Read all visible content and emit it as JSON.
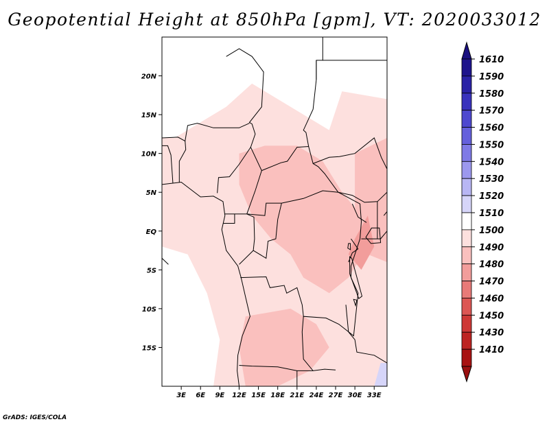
{
  "title": "Geopotential Height at 850hPa [gpm], VT: 2020033012",
  "credit": "GrADS: IGES/COLA",
  "map": {
    "lon_range": [
      0,
      35
    ],
    "lat_range": [
      -20,
      25
    ],
    "lon_ticks": [
      {
        "value": 3,
        "label": "3E"
      },
      {
        "value": 6,
        "label": "6E"
      },
      {
        "value": 9,
        "label": "9E"
      },
      {
        "value": 12,
        "label": "12E"
      },
      {
        "value": 15,
        "label": "15E"
      },
      {
        "value": 18,
        "label": "18E"
      },
      {
        "value": 21,
        "label": "21E"
      },
      {
        "value": 24,
        "label": "24E"
      },
      {
        "value": 27,
        "label": "27E"
      },
      {
        "value": 30,
        "label": "30E"
      },
      {
        "value": 33,
        "label": "33E"
      }
    ],
    "lat_ticks": [
      {
        "value": 20,
        "label": "20N"
      },
      {
        "value": 15,
        "label": "15N"
      },
      {
        "value": 10,
        "label": "10N"
      },
      {
        "value": 5,
        "label": "5N"
      },
      {
        "value": 0,
        "label": "EQ"
      },
      {
        "value": -5,
        "label": "5S"
      },
      {
        "value": -10,
        "label": "10S"
      },
      {
        "value": -15,
        "label": "15S"
      }
    ],
    "field_regions": [
      {
        "level": 1510,
        "name": "sahel-north",
        "pts": [
          [
            0,
            25
          ],
          [
            35,
            25
          ],
          [
            35,
            17
          ],
          [
            28,
            18
          ],
          [
            26,
            13
          ],
          [
            22,
            15
          ],
          [
            18,
            17
          ],
          [
            14,
            19
          ],
          [
            10,
            16
          ],
          [
            6,
            14
          ],
          [
            2,
            12
          ],
          [
            0,
            12
          ]
        ]
      },
      {
        "level": 1500,
        "name": "central-band",
        "pts": [
          [
            0,
            12
          ],
          [
            2,
            12
          ],
          [
            6,
            14
          ],
          [
            10,
            16
          ],
          [
            14,
            19
          ],
          [
            18,
            17
          ],
          [
            22,
            15
          ],
          [
            26,
            13
          ],
          [
            28,
            18
          ],
          [
            35,
            17
          ],
          [
            35,
            -16
          ],
          [
            31,
            -14
          ],
          [
            28,
            -20
          ],
          [
            0,
            -20
          ]
        ]
      },
      {
        "level": 1510,
        "name": "west-coast-light",
        "pts": [
          [
            0,
            -2
          ],
          [
            4,
            -3
          ],
          [
            7,
            -8
          ],
          [
            9,
            -14
          ],
          [
            8,
            -20
          ],
          [
            0,
            -20
          ]
        ]
      },
      {
        "level": 1490,
        "name": "congo-basin",
        "pts": [
          [
            12,
            10
          ],
          [
            16,
            11
          ],
          [
            21,
            11
          ],
          [
            25,
            9
          ],
          [
            28,
            5
          ],
          [
            31,
            2
          ],
          [
            32,
            -2
          ],
          [
            29,
            -6
          ],
          [
            26,
            -8
          ],
          [
            22,
            -6
          ],
          [
            20,
            -3
          ],
          [
            17,
            -1
          ],
          [
            14,
            2
          ],
          [
            12,
            6
          ]
        ]
      },
      {
        "level": 1490,
        "name": "east-highlands",
        "pts": [
          [
            30,
            10
          ],
          [
            35,
            12
          ],
          [
            35,
            -4
          ],
          [
            32,
            -3
          ],
          [
            30,
            2
          ]
        ]
      },
      {
        "level": 1490,
        "name": "angola-zambia",
        "pts": [
          [
            13,
            -11
          ],
          [
            20,
            -10
          ],
          [
            24,
            -12
          ],
          [
            26,
            -15
          ],
          [
            23,
            -18
          ],
          [
            18,
            -20
          ],
          [
            13,
            -20
          ],
          [
            12,
            -15
          ]
        ]
      },
      {
        "level": 1480,
        "name": "rift-low",
        "pts": [
          [
            30,
            -1
          ],
          [
            32,
            2
          ],
          [
            33,
            -2
          ],
          [
            31,
            -5
          ],
          [
            29,
            -3
          ]
        ]
      },
      {
        "level": 1520,
        "name": "mozambique-high",
        "pts": [
          [
            34,
            -17
          ],
          [
            35,
            -17
          ],
          [
            35,
            -20
          ],
          [
            33,
            -20
          ]
        ]
      }
    ]
  },
  "colorbar": {
    "levels": [
      {
        "label": "1610",
        "color": "#1e148c"
      },
      {
        "label": "1590",
        "color": "#2a22a6"
      },
      {
        "label": "1580",
        "color": "#3932bd"
      },
      {
        "label": "1570",
        "color": "#4e48cf"
      },
      {
        "label": "1560",
        "color": "#6560dc"
      },
      {
        "label": "1550",
        "color": "#7f7ae6"
      },
      {
        "label": "1540",
        "color": "#9c98ee"
      },
      {
        "label": "1530",
        "color": "#b8b6f4"
      },
      {
        "label": "1520",
        "color": "#d6d5f9"
      },
      {
        "label": "1510",
        "color": "#ffffff"
      },
      {
        "label": "1500",
        "color": "#fde0de"
      },
      {
        "label": "1490",
        "color": "#fac0be"
      },
      {
        "label": "1480",
        "color": "#f29d9b"
      },
      {
        "label": "1470",
        "color": "#e87a78"
      },
      {
        "label": "1460",
        "color": "#dc5654"
      },
      {
        "label": "1450",
        "color": "#ce3836"
      },
      {
        "label": "1430",
        "color": "#bd2422"
      },
      {
        "label": "1410",
        "color": "#a81212"
      }
    ],
    "top_arrow_color": "#1a1080",
    "bottom_arrow_color": "#9a1010"
  }
}
